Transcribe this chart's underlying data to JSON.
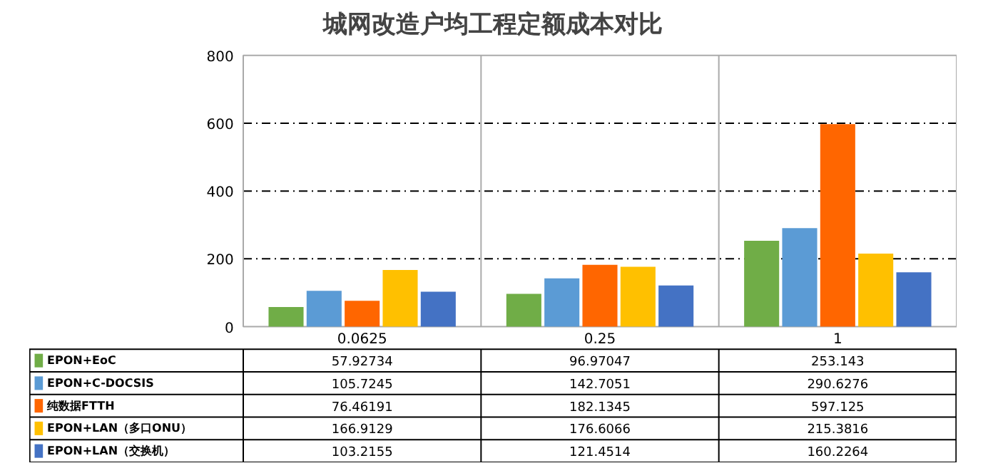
{
  "chart_data": {
    "type": "bar",
    "title": "城网改造户均工程定额成本对比",
    "categories": [
      "0.0625",
      "0.25",
      "1"
    ],
    "series": [
      {
        "name": "EPON+EoC",
        "color": "#70ad47",
        "values": [
          57.92734,
          96.97047,
          253.143
        ]
      },
      {
        "name": "EPON+C-DOCSIS",
        "color": "#5b9bd5",
        "values": [
          105.7245,
          142.7051,
          290.6276
        ]
      },
      {
        "name": "纯数据FTTH",
        "color": "#ff6600",
        "values": [
          76.46191,
          182.1345,
          597.125
        ]
      },
      {
        "name": "EPON+LAN（多口ONU）",
        "color": "#ffc000",
        "values": [
          166.9129,
          176.6066,
          215.3816
        ]
      },
      {
        "name": "EPON+LAN（交换机）",
        "color": "#4472c4",
        "values": [
          103.2155,
          121.4514,
          160.2264
        ]
      }
    ],
    "ylim": [
      0,
      800
    ],
    "yticks": [
      0,
      200,
      400,
      600,
      800
    ],
    "grid": "y",
    "data_labels": true,
    "legend": "bottom"
  }
}
